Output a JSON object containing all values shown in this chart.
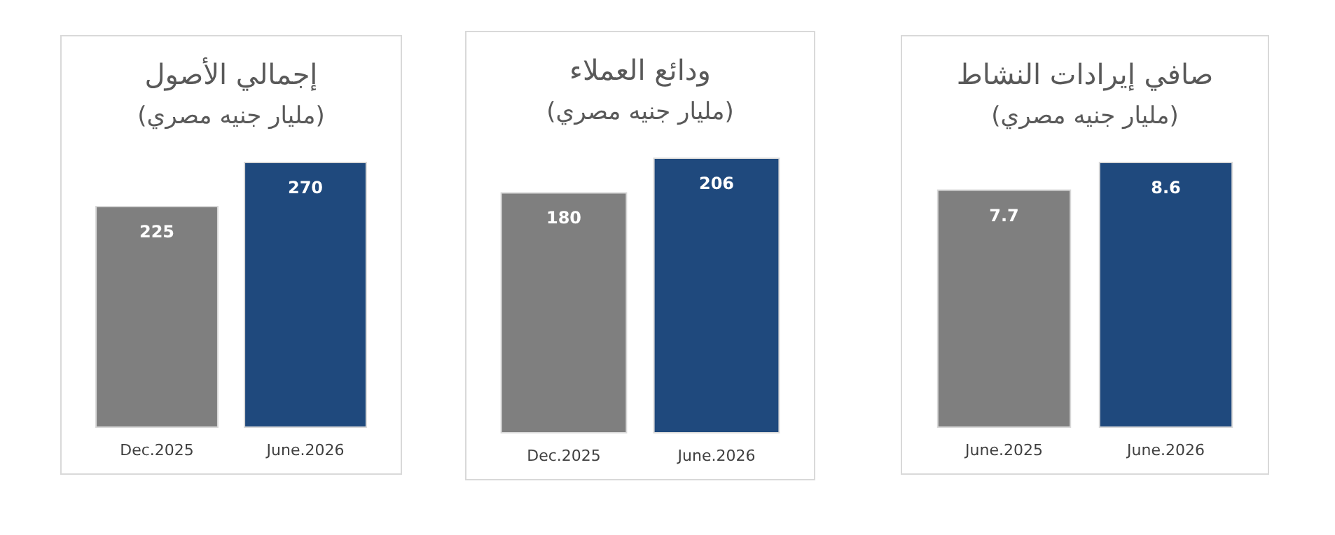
{
  "chart_data": [
    {
      "type": "bar",
      "title": "إجمالي الأصول",
      "subtitle": "(مليار جنيه مصري)",
      "categories": [
        "Dec.2025",
        "June.2026"
      ],
      "values": [
        225,
        270
      ],
      "colors": [
        "#7f7f7f",
        "#1f497d"
      ],
      "data_labels": true
    },
    {
      "type": "bar",
      "title": "ودائع العملاء",
      "subtitle": "(مليار جنيه مصري)",
      "categories": [
        "Dec.2025",
        "June.2026"
      ],
      "values": [
        180,
        206
      ],
      "colors": [
        "#7f7f7f",
        "#1f497d"
      ],
      "data_labels": true
    },
    {
      "type": "bar",
      "title": "صافي إيرادات النشاط",
      "subtitle": "(مليار جنيه مصري)",
      "categories": [
        "June.2025",
        "June.2026"
      ],
      "values": [
        7.7,
        8.6
      ],
      "colors": [
        "#7f7f7f",
        "#1f497d"
      ],
      "data_labels": true
    }
  ]
}
